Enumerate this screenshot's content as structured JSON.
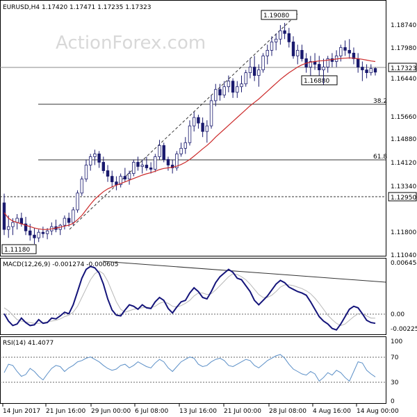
{
  "header": {
    "title": "EURUSD,H4  1.17420 1.17471 1.17235 1.17323",
    "watermark": "ActionForex.com"
  },
  "chart_data": {
    "type": "line",
    "price": {
      "y_ticks": [
        "1.18740",
        "1.17980",
        "1.17323",
        "1.16440",
        "1.15660",
        "1.14880",
        "1.14120",
        "1.13340",
        "1.12950",
        "1.11800",
        "1.11040"
      ],
      "current_price": "1.17323",
      "annotations": {
        "high": "1.19080",
        "pullback_low": "1.16880",
        "low": "1.11180",
        "fib_382": "38.2",
        "fib_618": "61.8",
        "support": "1.12950"
      },
      "ylim": [
        1.1081,
        1.1945
      ],
      "candles": [
        [
          1.1265,
          1.1298,
          1.115,
          1.117
        ],
        [
          1.117,
          1.122,
          1.114,
          1.118
        ],
        [
          1.118,
          1.121,
          1.115,
          1.1195
        ],
        [
          1.1195,
          1.1225,
          1.117,
          1.121
        ],
        [
          1.121,
          1.123,
          1.118,
          1.119
        ],
        [
          1.119,
          1.1215,
          1.115,
          1.1165
        ],
        [
          1.1165,
          1.119,
          1.113,
          1.115
        ],
        [
          1.115,
          1.1175,
          1.1118,
          1.114
        ],
        [
          1.114,
          1.117,
          1.1125,
          1.116
        ],
        [
          1.116,
          1.118,
          1.114,
          1.1155
        ],
        [
          1.1155,
          1.1175,
          1.1135,
          1.1165
        ],
        [
          1.1165,
          1.1195,
          1.115,
          1.118
        ],
        [
          1.118,
          1.1205,
          1.116,
          1.117
        ],
        [
          1.117,
          1.119,
          1.115,
          1.1185
        ],
        [
          1.1185,
          1.122,
          1.117,
          1.121
        ],
        [
          1.121,
          1.123,
          1.118,
          1.1195
        ],
        [
          1.1195,
          1.125,
          1.1185,
          1.124
        ],
        [
          1.124,
          1.131,
          1.123,
          1.13
        ],
        [
          1.13,
          1.136,
          1.129,
          1.135
        ],
        [
          1.135,
          1.142,
          1.134,
          1.14
        ],
        [
          1.14,
          1.144,
          1.138,
          1.143
        ],
        [
          1.143,
          1.1455,
          1.14,
          1.144
        ],
        [
          1.144,
          1.145,
          1.139,
          1.141
        ],
        [
          1.141,
          1.143,
          1.137,
          1.138
        ],
        [
          1.138,
          1.14,
          1.134,
          1.136
        ],
        [
          1.136,
          1.138,
          1.132,
          1.134
        ],
        [
          1.134,
          1.136,
          1.131,
          1.133
        ],
        [
          1.133,
          1.137,
          1.132,
          1.136
        ],
        [
          1.136,
          1.139,
          1.134,
          1.135
        ],
        [
          1.135,
          1.138,
          1.133,
          1.137
        ],
        [
          1.137,
          1.142,
          1.136,
          1.141
        ],
        [
          1.141,
          1.143,
          1.138,
          1.1395
        ],
        [
          1.1395,
          1.142,
          1.137,
          1.14
        ],
        [
          1.14,
          1.143,
          1.138,
          1.139
        ],
        [
          1.139,
          1.141,
          1.137,
          1.1385
        ],
        [
          1.1385,
          1.144,
          1.1375,
          1.143
        ],
        [
          1.143,
          1.149,
          1.142,
          1.147
        ],
        [
          1.147,
          1.148,
          1.141,
          1.142
        ],
        [
          1.142,
          1.143,
          1.138,
          1.14
        ],
        [
          1.14,
          1.142,
          1.137,
          1.139
        ],
        [
          1.139,
          1.145,
          1.138,
          1.144
        ],
        [
          1.144,
          1.148,
          1.143,
          1.146
        ],
        [
          1.146,
          1.15,
          1.144,
          1.148
        ],
        [
          1.148,
          1.156,
          1.147,
          1.154
        ],
        [
          1.154,
          1.159,
          1.152,
          1.157
        ],
        [
          1.157,
          1.158,
          1.153,
          1.155
        ],
        [
          1.155,
          1.157,
          1.15,
          1.152
        ],
        [
          1.152,
          1.156,
          1.148,
          1.154
        ],
        [
          1.154,
          1.165,
          1.153,
          1.163
        ],
        [
          1.163,
          1.169,
          1.161,
          1.167
        ],
        [
          1.167,
          1.169,
          1.163,
          1.165
        ],
        [
          1.165,
          1.17,
          1.164,
          1.168
        ],
        [
          1.168,
          1.172,
          1.166,
          1.17
        ],
        [
          1.17,
          1.171,
          1.164,
          1.166
        ],
        [
          1.166,
          1.17,
          1.164,
          1.168
        ],
        [
          1.168,
          1.172,
          1.166,
          1.169
        ],
        [
          1.169,
          1.174,
          1.168,
          1.173
        ],
        [
          1.173,
          1.178,
          1.171,
          1.175
        ],
        [
          1.175,
          1.179,
          1.17,
          1.172
        ],
        [
          1.172,
          1.176,
          1.168,
          1.174
        ],
        [
          1.174,
          1.18,
          1.173,
          1.179
        ],
        [
          1.179,
          1.183,
          1.176,
          1.181
        ],
        [
          1.181,
          1.186,
          1.179,
          1.184
        ],
        [
          1.184,
          1.187,
          1.181,
          1.185
        ],
        [
          1.185,
          1.19,
          1.183,
          1.188
        ],
        [
          1.188,
          1.1908,
          1.185,
          1.187
        ],
        [
          1.187,
          1.189,
          1.182,
          1.184
        ],
        [
          1.184,
          1.186,
          1.178,
          1.179
        ],
        [
          1.179,
          1.183,
          1.176,
          1.181
        ],
        [
          1.181,
          1.183,
          1.177,
          1.178
        ],
        [
          1.178,
          1.18,
          1.173,
          1.175
        ],
        [
          1.175,
          1.179,
          1.172,
          1.177
        ],
        [
          1.177,
          1.18,
          1.174,
          1.176
        ],
        [
          1.176,
          1.179,
          1.172,
          1.174
        ],
        [
          1.174,
          1.178,
          1.1688,
          1.175
        ],
        [
          1.175,
          1.179,
          1.173,
          1.178
        ],
        [
          1.178,
          1.18,
          1.175,
          1.177
        ],
        [
          1.177,
          1.181,
          1.175,
          1.179
        ],
        [
          1.179,
          1.183,
          1.177,
          1.182
        ],
        [
          1.182,
          1.1845,
          1.179,
          1.181
        ],
        [
          1.181,
          1.185,
          1.178,
          1.18
        ],
        [
          1.18,
          1.182,
          1.176,
          1.178
        ],
        [
          1.178,
          1.18,
          1.173,
          1.175
        ],
        [
          1.175,
          1.177,
          1.17,
          1.174
        ],
        [
          1.174,
          1.176,
          1.171,
          1.173
        ],
        [
          1.173,
          1.176,
          1.172,
          1.1745
        ],
        [
          1.1745,
          1.175,
          1.172,
          1.1732
        ]
      ],
      "sma": [
        1.123,
        1.121,
        1.12,
        1.1195,
        1.119,
        1.1185,
        1.118,
        1.1175,
        1.1172,
        1.117,
        1.117,
        1.1172,
        1.1175,
        1.1178,
        1.1182,
        1.1185,
        1.1192,
        1.1205,
        1.122,
        1.124,
        1.126,
        1.1278,
        1.1292,
        1.1305,
        1.1315,
        1.1322,
        1.1328,
        1.1334,
        1.134,
        1.1346,
        1.1352,
        1.1358,
        1.1364,
        1.1369,
        1.1373,
        1.1378,
        1.1384,
        1.1388,
        1.139,
        1.1392,
        1.1396,
        1.1402,
        1.141,
        1.142,
        1.1432,
        1.1445,
        1.1458,
        1.147,
        1.1484,
        1.15,
        1.1514,
        1.1528,
        1.1542,
        1.1556,
        1.157,
        1.1584,
        1.1598,
        1.1612,
        1.1624,
        1.1636,
        1.165,
        1.1664,
        1.1678,
        1.1692,
        1.1706,
        1.1718,
        1.173,
        1.174,
        1.175,
        1.1758,
        1.1764,
        1.1768,
        1.177,
        1.1772,
        1.1773,
        1.1775,
        1.1777,
        1.1779,
        1.1781,
        1.1782,
        1.1783,
        1.1782,
        1.178,
        1.1778,
        1.1775,
        1.1772,
        1.177
      ]
    },
    "macd": {
      "label": "MACD(12,26,9) -0.001274 -0.000605",
      "y_ticks": [
        "0.006454",
        "0.00",
        "-0.002252"
      ],
      "ylim": [
        -0.0026,
        0.0069
      ],
      "macd": [
        0.0,
        -0.001,
        -0.0016,
        -0.0014,
        -0.0006,
        -0.0012,
        -0.0016,
        -0.0015,
        -0.0008,
        -0.0013,
        -0.0012,
        -0.0006,
        -0.0007,
        -0.0003,
        0.0002,
        0.0,
        0.0012,
        0.003,
        0.0048,
        0.006,
        0.0064,
        0.0062,
        0.0055,
        0.004,
        0.002,
        0.0005,
        -0.0002,
        -0.0003,
        0.0005,
        0.0012,
        0.001,
        0.0006,
        0.0012,
        0.0008,
        0.0007,
        0.0016,
        0.0022,
        0.0018,
        0.0007,
        0.0001,
        0.0009,
        0.0016,
        0.0018,
        0.0028,
        0.0035,
        0.003,
        0.0022,
        0.002,
        0.003,
        0.0042,
        0.005,
        0.0055,
        0.006,
        0.0056,
        0.0048,
        0.0046,
        0.0038,
        0.003,
        0.0018,
        0.0012,
        0.0018,
        0.0024,
        0.0032,
        0.004,
        0.0045,
        0.0042,
        0.0036,
        0.0033,
        0.003,
        0.0028,
        0.0025,
        0.0016,
        0.0006,
        -0.0004,
        -0.001,
        -0.0014,
        -0.002,
        -0.0022,
        -0.0014,
        -0.0004,
        0.0006,
        0.001,
        0.0008,
        0.0,
        -0.0009,
        -0.0012,
        -0.0013
      ],
      "signal": [
        0.0008,
        0.0004,
        -0.0002,
        -0.0008,
        -0.001,
        -0.0011,
        -0.0012,
        -0.0013,
        -0.0013,
        -0.0012,
        -0.0011,
        -0.001,
        -0.0009,
        -0.0007,
        -0.0004,
        -0.0002,
        0.0002,
        0.001,
        0.0022,
        0.0034,
        0.0046,
        0.0054,
        0.0058,
        0.0054,
        0.0044,
        0.003,
        0.0016,
        0.0006,
        0.0002,
        0.0004,
        0.0006,
        0.0007,
        0.0008,
        0.0009,
        0.0008,
        0.001,
        0.0014,
        0.0016,
        0.0014,
        0.001,
        0.0009,
        0.0011,
        0.0014,
        0.0018,
        0.0024,
        0.0028,
        0.0028,
        0.0026,
        0.0027,
        0.0032,
        0.0038,
        0.0044,
        0.005,
        0.0054,
        0.0053,
        0.005,
        0.0046,
        0.004,
        0.0033,
        0.0026,
        0.0022,
        0.0022,
        0.0025,
        0.003,
        0.0036,
        0.0039,
        0.0039,
        0.0038,
        0.0036,
        0.0034,
        0.0031,
        0.0027,
        0.0021,
        0.0014,
        0.0006,
        -0.0002,
        -0.0008,
        -0.0013,
        -0.0016,
        -0.0014,
        -0.0009,
        -0.0004,
        0.0,
        0.0,
        -0.0003,
        -0.0006,
        -0.0006
      ],
      "trendline": [
        0.0065,
        0.0048
      ]
    },
    "rsi": {
      "label": "RSI(14) 41.4077",
      "y_ticks": [
        "100",
        "70",
        "30",
        "0"
      ],
      "ylim": [
        0,
        100
      ],
      "values": [
        48,
        62,
        60,
        50,
        42,
        45,
        55,
        50,
        42,
        36,
        46,
        55,
        60,
        58,
        50,
        56,
        60,
        66,
        68,
        72,
        74,
        70,
        66,
        60,
        55,
        52,
        54,
        60,
        62,
        56,
        60,
        66,
        62,
        58,
        56,
        64,
        70,
        66,
        56,
        50,
        58,
        66,
        70,
        74,
        72,
        62,
        58,
        60,
        66,
        70,
        72,
        68,
        60,
        58,
        62,
        66,
        70,
        68,
        60,
        56,
        62,
        68,
        72,
        76,
        78,
        72,
        62,
        54,
        50,
        46,
        44,
        50,
        46,
        34,
        40,
        48,
        44,
        52,
        48,
        40,
        34,
        50,
        66,
        64,
        52,
        46,
        41
      ]
    },
    "x_tick_labels": [
      "14 Jun 2017",
      "21 Jun 16:00",
      "29 Jun 00:00",
      "6 Jul 08:00",
      "13 Jul 16:00",
      "21 Jul 00:00",
      "28 Jul 08:00",
      "4 Aug 16:00",
      "14 Aug 00:00"
    ],
    "colors": {
      "candle": "#1a1a6e",
      "sma": "#cc2a2a",
      "macd": "#14147a",
      "signal": "#b8b8b8",
      "rsi": "#5b8fc7",
      "trendline": "#333333",
      "grid": "#333333"
    }
  }
}
